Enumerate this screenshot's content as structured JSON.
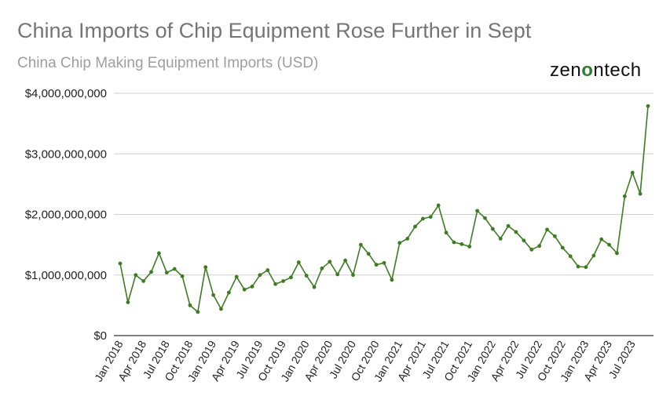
{
  "header": {
    "title": "China Imports of Chip Equipment Rose Further in Sept",
    "subtitle": "China Chip Making Equipment Imports (USD)"
  },
  "logo": {
    "pre": "zen",
    "mid": "o",
    "post": "ntech"
  },
  "colors": {
    "line": "#3e7b22",
    "logo_accent": "#2e7d32"
  },
  "chart_data": {
    "type": "line",
    "title": "China Imports of Chip Equipment Rose Further in Sept",
    "subtitle": "China Chip Making Equipment Imports (USD)",
    "ylim": [
      0,
      4000000000
    ],
    "yticks": [
      0,
      1000000000,
      2000000000,
      3000000000,
      4000000000
    ],
    "ytick_labels": [
      "$0",
      "$1,000,000,000",
      "$2,000,000,000",
      "$3,000,000,000",
      "$4,000,000,000"
    ],
    "grid": true,
    "legend": "none",
    "x_tick_labels": [
      "Jan 2018",
      "Apr 2018",
      "Jul 2018",
      "Oct 2018",
      "Jan 2019",
      "Apr 2019",
      "Jul 2019",
      "Oct 2019",
      "Jan 2020",
      "Apr 2020",
      "Jul 2020",
      "Oct 2020",
      "Jan 2021",
      "Apr 2021",
      "Jul 2021",
      "Oct 2021",
      "Jan 2022",
      "Apr 2022",
      "Jul 2022",
      "Oct 2022",
      "Jan 2023",
      "Apr 2023",
      "Jul 2023"
    ],
    "x": [
      "2018-01",
      "2018-02",
      "2018-03",
      "2018-04",
      "2018-05",
      "2018-06",
      "2018-07",
      "2018-08",
      "2018-09",
      "2018-10",
      "2018-11",
      "2018-12",
      "2019-01",
      "2019-02",
      "2019-03",
      "2019-04",
      "2019-05",
      "2019-06",
      "2019-07",
      "2019-08",
      "2019-09",
      "2019-10",
      "2019-11",
      "2019-12",
      "2020-01",
      "2020-02",
      "2020-03",
      "2020-04",
      "2020-05",
      "2020-06",
      "2020-07",
      "2020-08",
      "2020-09",
      "2020-10",
      "2020-11",
      "2020-12",
      "2021-01",
      "2021-02",
      "2021-03",
      "2021-04",
      "2021-05",
      "2021-06",
      "2021-07",
      "2021-08",
      "2021-09",
      "2021-10",
      "2021-11",
      "2021-12",
      "2022-01",
      "2022-02",
      "2022-03",
      "2022-04",
      "2022-05",
      "2022-06",
      "2022-07",
      "2022-08",
      "2022-09",
      "2022-10",
      "2022-11",
      "2022-12",
      "2023-01",
      "2023-02",
      "2023-03",
      "2023-04",
      "2023-05",
      "2023-06",
      "2023-07",
      "2023-08",
      "2023-09"
    ],
    "series": [
      {
        "values": [
          1190000000,
          550000000,
          1000000000,
          900000000,
          1050000000,
          1360000000,
          1040000000,
          1100000000,
          980000000,
          500000000,
          390000000,
          1130000000,
          670000000,
          440000000,
          710000000,
          970000000,
          760000000,
          810000000,
          1000000000,
          1080000000,
          850000000,
          900000000,
          960000000,
          1210000000,
          990000000,
          800000000,
          1110000000,
          1220000000,
          1010000000,
          1240000000,
          1000000000,
          1500000000,
          1350000000,
          1170000000,
          1200000000,
          920000000,
          1530000000,
          1600000000,
          1800000000,
          1930000000,
          1960000000,
          2150000000,
          1700000000,
          1540000000,
          1510000000,
          1470000000,
          2060000000,
          1940000000,
          1760000000,
          1600000000,
          1810000000,
          1710000000,
          1570000000,
          1420000000,
          1480000000,
          1750000000,
          1640000000,
          1450000000,
          1310000000,
          1140000000,
          1130000000,
          1320000000,
          1590000000,
          1500000000,
          1360000000,
          2300000000,
          2690000000,
          2340000000,
          3790000000
        ]
      }
    ]
  }
}
